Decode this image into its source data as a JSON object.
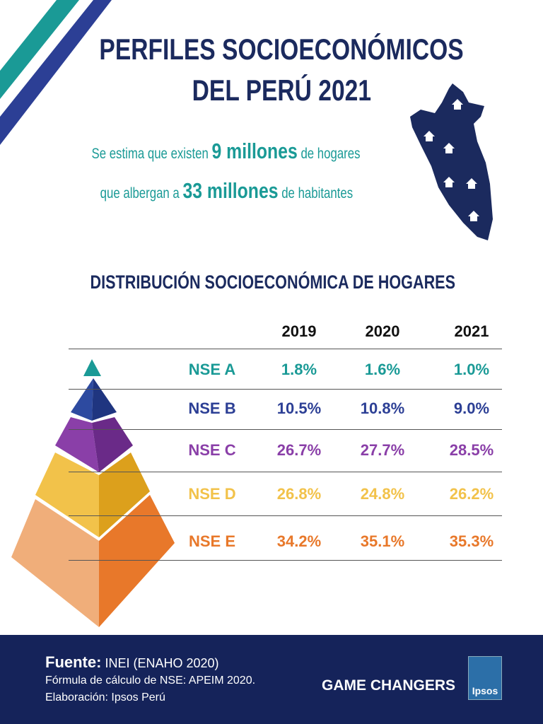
{
  "header": {
    "title_lines": [
      "PERFILES SOCIOECONÓMICOS",
      "DEL PERÚ 2021"
    ]
  },
  "intro": {
    "lines": [
      [
        "Se estima que existen",
        "9 millones",
        "de hogares"
      ],
      [
        "que albergan a",
        "33 millones",
        "de habitantes"
      ]
    ]
  },
  "section_title": "DISTRIBUCIÓN SOCIOECONÓMICA DE HOGARES",
  "table": {
    "columns": [
      "2019",
      "2020",
      "2021"
    ],
    "rows": [
      {
        "label": "NSE A",
        "values": [
          "1.8%",
          "1.6%",
          "1.0%"
        ]
      },
      {
        "label": "NSE B",
        "values": [
          "10.5%",
          "10.8%",
          "9.0%"
        ]
      },
      {
        "label": "NSE C",
        "values": [
          "26.7%",
          "27.7%",
          "28.5%"
        ]
      },
      {
        "label": "NSE D",
        "values": [
          "26.8%",
          "24.8%",
          "26.2%"
        ]
      },
      {
        "label": "NSE E",
        "values": [
          "34.2%",
          "35.1%",
          "35.3%"
        ]
      }
    ]
  },
  "footer": {
    "source_label": "Fuente:",
    "source": "INEI (ENAHO 2020)",
    "notes": [
      "Fórmula de cálculo de NSE: APEIM 2020.",
      "Elaboración: Ipsos Perú"
    ],
    "brand": "GAME CHANGERS",
    "logo": "Ipsos"
  }
}
